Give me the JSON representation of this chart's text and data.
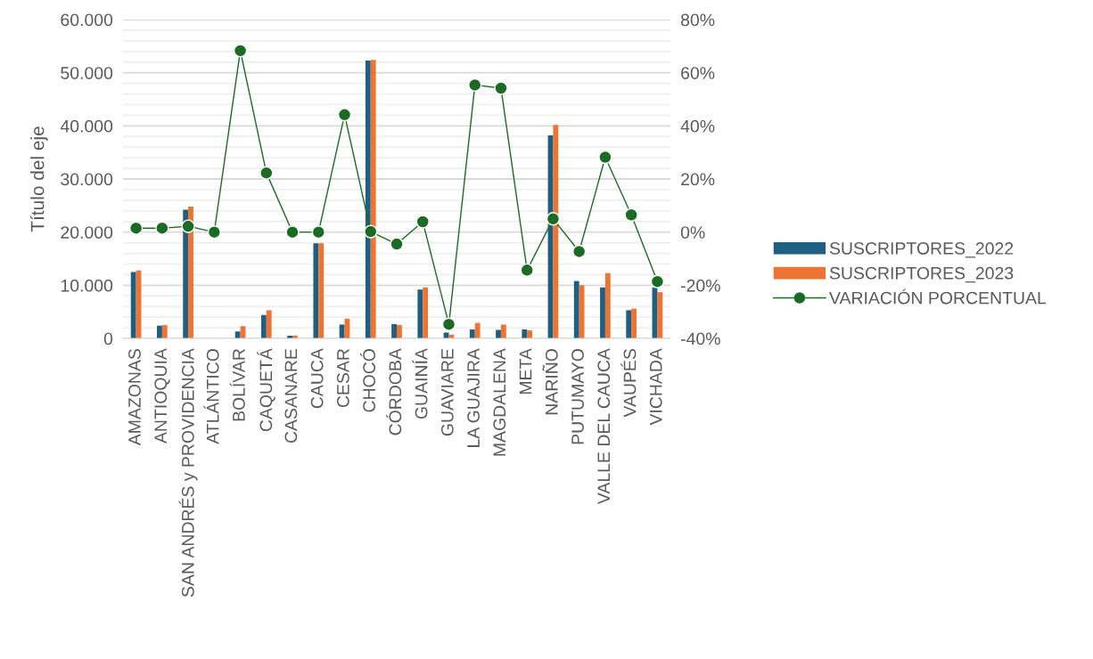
{
  "chart_data": {
    "type": "bar",
    "ylabel": "Título del eje",
    "categories": [
      "AMAZONAS",
      "ANTIOQUIA",
      "SAN ANDRÉS y PROVIDENCIA",
      "ATLÁNTICO",
      "BOLÍVAR",
      "CAQUETÁ",
      "CASANARE",
      "CAUCA",
      "CESAR",
      "CHOCÓ",
      "CÓRDOBA",
      "GUAINÍA",
      "GUAVIARE",
      "LA GUAJIRA",
      "MAGDALENA",
      "META",
      "NARIÑO",
      "PUTUMAYO",
      "VALLE DEL CAUCA",
      "VAUPÉS",
      "VICHADA"
    ],
    "series": [
      {
        "name": "SUSCRIPTORES_2022",
        "color": "#1f5f82",
        "values": [
          12500,
          2400,
          24200,
          0,
          1300,
          4400,
          500,
          17900,
          2600,
          52300,
          2700,
          9200,
          1100,
          1700,
          1600,
          1700,
          38200,
          10800,
          9600,
          5300,
          9600
        ]
      },
      {
        "name": "SUSCRIPTORES_2023",
        "color": "#ed7432",
        "values": [
          12800,
          2500,
          24800,
          0,
          2300,
          5300,
          500,
          17900,
          3700,
          52400,
          2500,
          9600,
          700,
          2900,
          2600,
          1500,
          40200,
          10000,
          12300,
          5600,
          8700
        ]
      },
      {
        "name": "VARIACIÓN PORCENTUAL",
        "type": "line",
        "axis": "y2",
        "color": "#1b6b24",
        "marker": "circle",
        "values": [
          1.5,
          1.5,
          2.2,
          0,
          68.3,
          22.3,
          0,
          0,
          44.2,
          0.2,
          -4.5,
          3.9,
          -34.7,
          55.4,
          54.2,
          -14.3,
          5.0,
          -7.3,
          28.2,
          6.5,
          -18.6
        ]
      }
    ],
    "ylim": [
      0,
      60000
    ],
    "yticks": [
      {
        "value": 0,
        "label": "0"
      },
      {
        "value": 2000,
        "label": null
      },
      {
        "value": 4000,
        "label": null
      },
      {
        "value": 6000,
        "label": null
      },
      {
        "value": 8000,
        "label": null
      },
      {
        "value": 10000,
        "label": "10.000"
      },
      {
        "value": 12000,
        "label": null
      },
      {
        "value": 14000,
        "label": null
      },
      {
        "value": 16000,
        "label": null
      },
      {
        "value": 18000,
        "label": null
      },
      {
        "value": 20000,
        "label": "20.000"
      },
      {
        "value": 22000,
        "label": null
      },
      {
        "value": 24000,
        "label": null
      },
      {
        "value": 26000,
        "label": null
      },
      {
        "value": 28000,
        "label": null
      },
      {
        "value": 30000,
        "label": "30.000"
      },
      {
        "value": 32000,
        "label": null
      },
      {
        "value": 34000,
        "label": null
      },
      {
        "value": 36000,
        "label": null
      },
      {
        "value": 38000,
        "label": null
      },
      {
        "value": 40000,
        "label": "40.000"
      },
      {
        "value": 42000,
        "label": null
      },
      {
        "value": 44000,
        "label": null
      },
      {
        "value": 46000,
        "label": null
      },
      {
        "value": 48000,
        "label": null
      },
      {
        "value": 50000,
        "label": "50.000"
      },
      {
        "value": 52000,
        "label": null
      },
      {
        "value": 54000,
        "label": null
      },
      {
        "value": 56000,
        "label": null
      },
      {
        "value": 58000,
        "label": null
      },
      {
        "value": 60000,
        "label": "60.000"
      }
    ],
    "y2lim": [
      -40,
      80
    ],
    "y2ticks": [
      {
        "value": -40,
        "label": "-40%"
      },
      {
        "value": -20,
        "label": "-20%"
      },
      {
        "value": 0,
        "label": "0%"
      },
      {
        "value": 20,
        "label": "20%"
      },
      {
        "value": 40,
        "label": "40%"
      },
      {
        "value": 60,
        "label": "60%"
      },
      {
        "value": 80,
        "label": "80%"
      }
    ],
    "grid": "y",
    "legend": "right"
  }
}
